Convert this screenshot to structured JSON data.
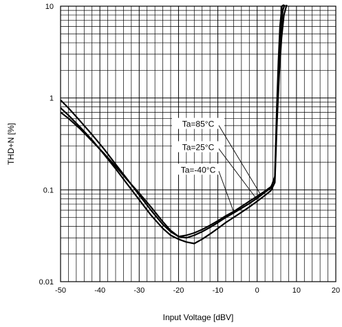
{
  "chart_data": {
    "type": "line",
    "xlabel": "Input Voltage [dBV]",
    "ylabel": "THD+N [%]",
    "xlim": [
      -50,
      20
    ],
    "ylim": [
      0.01,
      10
    ],
    "y_scale": "log",
    "grid": true,
    "x_ticks": [
      -50,
      -40,
      -30,
      -20,
      -10,
      0,
      10,
      20
    ],
    "x_tick_labels": [
      "-50",
      "-40",
      "-30",
      "-20",
      "-10",
      "0",
      "10",
      "20"
    ],
    "y_ticks": [
      0.01,
      0.1,
      1,
      10
    ],
    "y_tick_labels": [
      "0.01",
      "0.1",
      "1",
      "10"
    ],
    "series": [
      {
        "name": "Ta=85°C",
        "x": [
          -50,
          -48,
          -45,
          -42,
          -39,
          -36,
          -33,
          -30,
          -27,
          -24,
          -22,
          -20,
          -18,
          -16,
          -14,
          -12,
          -10,
          -8,
          -6,
          -4,
          -2,
          0,
          2,
          3.5,
          4.5,
          5.0,
          5.5,
          6.0,
          6.5,
          7.0
        ],
        "y": [
          0.95,
          0.78,
          0.56,
          0.4,
          0.28,
          0.19,
          0.13,
          0.088,
          0.06,
          0.042,
          0.035,
          0.031,
          0.032,
          0.034,
          0.037,
          0.041,
          0.046,
          0.052,
          0.058,
          0.066,
          0.075,
          0.085,
          0.097,
          0.108,
          0.13,
          0.6,
          2.0,
          5.0,
          9.0,
          12
        ]
      },
      {
        "name": "Ta=25°C",
        "x": [
          -50,
          -48,
          -45,
          -42,
          -39,
          -36,
          -33,
          -30,
          -27,
          -24,
          -22,
          -20,
          -18,
          -16,
          -14,
          -12,
          -10,
          -8,
          -6,
          -4,
          -2,
          0,
          2,
          3.5,
          4.5,
          5.0,
          5.6,
          6.2,
          6.8,
          7.5
        ],
        "y": [
          0.78,
          0.65,
          0.48,
          0.35,
          0.245,
          0.17,
          0.115,
          0.078,
          0.053,
          0.038,
          0.032,
          0.029,
          0.027,
          0.026,
          0.029,
          0.033,
          0.038,
          0.044,
          0.05,
          0.057,
          0.065,
          0.075,
          0.087,
          0.098,
          0.12,
          0.5,
          1.8,
          4.5,
          8.0,
          11
        ]
      },
      {
        "name": "Ta=-40°C",
        "x": [
          -50,
          -48,
          -45,
          -42,
          -39,
          -36,
          -33,
          -30,
          -27,
          -24,
          -22,
          -20,
          -18,
          -16,
          -14,
          -12,
          -10,
          -8,
          -6,
          -4,
          -2,
          0,
          2,
          3.5,
          4.5,
          5.0,
          5.4,
          5.8,
          6.3,
          6.8
        ],
        "y": [
          0.7,
          0.6,
          0.46,
          0.34,
          0.25,
          0.18,
          0.128,
          0.092,
          0.065,
          0.045,
          0.036,
          0.031,
          0.03,
          0.032,
          0.035,
          0.039,
          0.044,
          0.05,
          0.056,
          0.063,
          0.071,
          0.081,
          0.094,
          0.105,
          0.14,
          0.8,
          2.5,
          6.0,
          10,
          13
        ]
      }
    ],
    "annotations": [
      {
        "text": "Ta=85°C",
        "label_x": -15,
        "label_y": 0.52,
        "target_x": 1.0,
        "target_y": 0.087
      },
      {
        "text": "Ta=25°C",
        "label_x": -15,
        "label_y": 0.29,
        "target_x": 0.0,
        "target_y": 0.078
      },
      {
        "text": "Ta=-40°C",
        "label_x": -15,
        "label_y": 0.165,
        "target_x": -6.0,
        "target_y": 0.058
      }
    ]
  }
}
